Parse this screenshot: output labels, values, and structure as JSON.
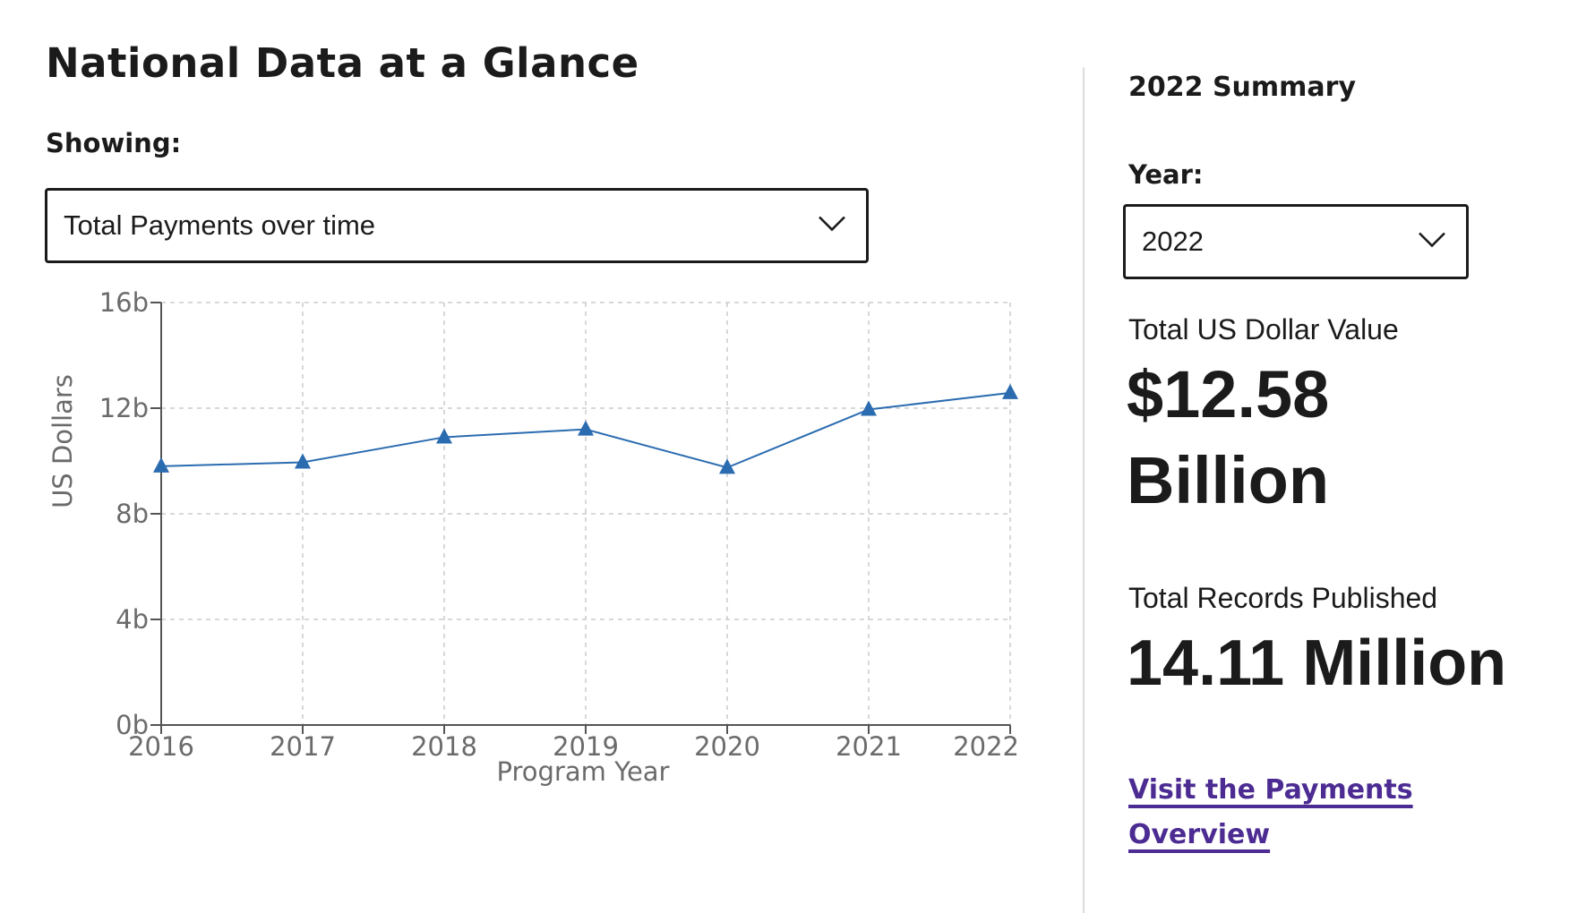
{
  "page": {
    "title": "National Data at a Glance"
  },
  "showing": {
    "label": "Showing:",
    "selected": "Total Payments over time"
  },
  "summary": {
    "title": "2022 Summary",
    "year_label": "Year:",
    "year_selected": "2022",
    "total_value_label": "Total US Dollar Value",
    "total_value_line1": "$12.58",
    "total_value_line2": "Billion",
    "records_label": "Total Records Published",
    "records_value": "14.11 Million",
    "link_text": "Visit the Payments Overview"
  },
  "colors": {
    "line": "#2b6cb0",
    "link": "#4c2c92",
    "grid": "#cccccc",
    "axis": "#555555"
  },
  "icons": {
    "dropdown": "chevron-down-icon",
    "marker": "triangle"
  },
  "chart_data": {
    "type": "line",
    "x": [
      "2016",
      "2017",
      "2018",
      "2019",
      "2020",
      "2021",
      "2022"
    ],
    "series": [
      {
        "values": [
          9.8,
          9.95,
          10.9,
          11.2,
          9.75,
          11.95,
          12.58
        ]
      }
    ],
    "title": "",
    "xlabel": "Program Year",
    "ylabel": "US Dollars",
    "ylim": [
      0,
      16
    ],
    "yticks": [
      0,
      4,
      8,
      12,
      16
    ],
    "ytick_labels": [
      "0b",
      "4b",
      "8b",
      "12b",
      "16b"
    ],
    "grid": true,
    "marker": "triangle"
  }
}
